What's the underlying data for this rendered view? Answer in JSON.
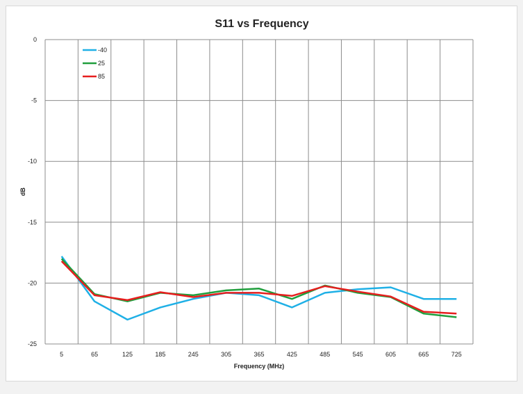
{
  "chart_data": {
    "type": "line",
    "title": "S11 vs Frequency",
    "xlabel": "Frequency (MHz)",
    "ylabel": "dB",
    "categories": [
      "5",
      "65",
      "125",
      "185",
      "245",
      "305",
      "365",
      "425",
      "485",
      "545",
      "605",
      "665",
      "725"
    ],
    "ylim": [
      -25,
      0
    ],
    "yticks": [
      0,
      -5,
      -10,
      -15,
      -20,
      -25
    ],
    "grid": true,
    "legend_position": "top-left",
    "series": [
      {
        "name": "-40",
        "color": "#1fb0e6",
        "values": [
          -17.8,
          -21.5,
          -23.0,
          -22.0,
          -21.3,
          -20.8,
          -21.0,
          -22.0,
          -20.8,
          -20.5,
          -20.35,
          -21.3,
          -21.3
        ]
      },
      {
        "name": "25",
        "color": "#1f9e3c",
        "values": [
          -18.0,
          -20.9,
          -21.5,
          -20.8,
          -21.0,
          -20.6,
          -20.45,
          -21.3,
          -20.2,
          -20.8,
          -21.15,
          -22.5,
          -22.8
        ]
      },
      {
        "name": "85",
        "color": "#e61e1e",
        "values": [
          -18.2,
          -21.0,
          -21.4,
          -20.75,
          -21.15,
          -20.8,
          -20.8,
          -21.05,
          -20.25,
          -20.7,
          -21.1,
          -22.35,
          -22.5
        ]
      }
    ]
  }
}
